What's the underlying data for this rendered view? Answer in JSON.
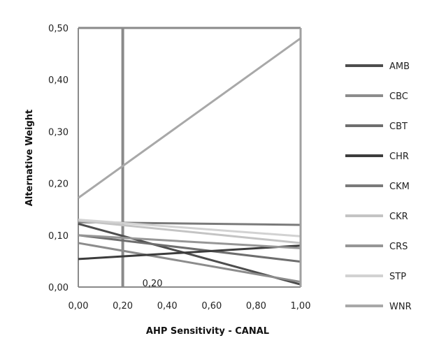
{
  "chart_data": {
    "type": "line",
    "xlabel": "AHP Sensitivity - CANAL",
    "ylabel": "Alternative Weight",
    "xlim": [
      0,
      1
    ],
    "ylim": [
      0,
      0.5
    ],
    "x_ticks": [
      "0,00",
      "0,20",
      "0,40",
      "0,60",
      "0,80",
      "1,00"
    ],
    "y_ticks": [
      "0,00",
      "0,10",
      "0,20",
      "0,30",
      "0,40",
      "0,50"
    ],
    "x": [
      0,
      1
    ],
    "legend_position": "right",
    "grid": false,
    "reference_line": {
      "x": 0.2,
      "label": "0,20"
    },
    "series": [
      {
        "name": "AMB",
        "color": "#4d4d4d",
        "values": [
          0.122,
          0.005
        ]
      },
      {
        "name": "CBC",
        "color": "#8c8c8c",
        "values": [
          0.085,
          0.01
        ]
      },
      {
        "name": "CBT",
        "color": "#6e6e6e",
        "values": [
          0.1,
          0.049
        ]
      },
      {
        "name": "CHR",
        "color": "#3c3c3c",
        "values": [
          0.054,
          0.08
        ]
      },
      {
        "name": "CKM",
        "color": "#7a7a7a",
        "values": [
          0.125,
          0.12
        ]
      },
      {
        "name": "CKR",
        "color": "#c4c4c4",
        "values": [
          0.128,
          0.085
        ]
      },
      {
        "name": "CRS",
        "color": "#969696",
        "values": [
          0.1,
          0.075
        ]
      },
      {
        "name": "STP",
        "color": "#d2d2d2",
        "values": [
          0.13,
          0.098
        ]
      },
      {
        "name": "WNR",
        "color": "#a8a8a8",
        "values": [
          0.172,
          0.48
        ]
      }
    ]
  }
}
